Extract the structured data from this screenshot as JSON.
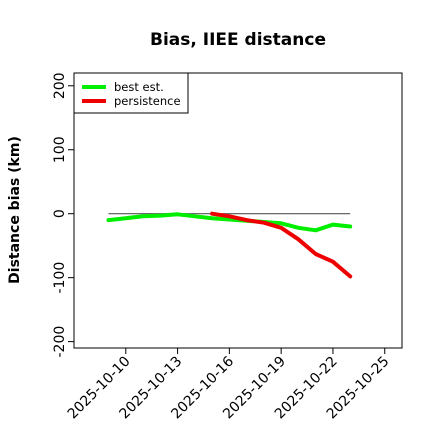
{
  "chart_data": {
    "type": "line",
    "title": "Bias, IIEE distance",
    "xlabel": "",
    "ylabel": "Distance bias (km)",
    "xlim": [
      "2025-10-07",
      "2025-10-26"
    ],
    "ylim": [
      -210,
      220
    ],
    "x_ticks": [
      "2025-10-10",
      "2025-10-13",
      "2025-10-16",
      "2025-10-19",
      "2025-10-22",
      "2025-10-25"
    ],
    "y_ticks": [
      -200,
      -100,
      0,
      100,
      200
    ],
    "y_tick_labels": [
      "-200",
      "-100",
      "0",
      "100",
      "200"
    ],
    "reference_line": {
      "y": 0,
      "x_start": "2025-10-09",
      "x_end": "2025-10-23",
      "color": "#555555"
    },
    "legend_position": "top-left",
    "grid": false,
    "series": [
      {
        "name": "best est.",
        "color": "#00ee00",
        "x": [
          "2025-10-09",
          "2025-10-10",
          "2025-10-11",
          "2025-10-12",
          "2025-10-13",
          "2025-10-14",
          "2025-10-15",
          "2025-10-16",
          "2025-10-17",
          "2025-10-18",
          "2025-10-19",
          "2025-10-20",
          "2025-10-21",
          "2025-10-22",
          "2025-10-23"
        ],
        "values": [
          -10,
          -7,
          -4,
          -3,
          -1,
          -4,
          -7,
          -9,
          -11,
          -13,
          -15,
          -22,
          -26,
          -17,
          -20
        ]
      },
      {
        "name": "persistence",
        "color": "#ee0000",
        "x": [
          "2025-10-15",
          "2025-10-16",
          "2025-10-17",
          "2025-10-18",
          "2025-10-19",
          "2025-10-20",
          "2025-10-21",
          "2025-10-22",
          "2025-10-23"
        ],
        "values": [
          0,
          -4,
          -10,
          -14,
          -22,
          -40,
          -63,
          -75,
          -98
        ]
      }
    ]
  }
}
